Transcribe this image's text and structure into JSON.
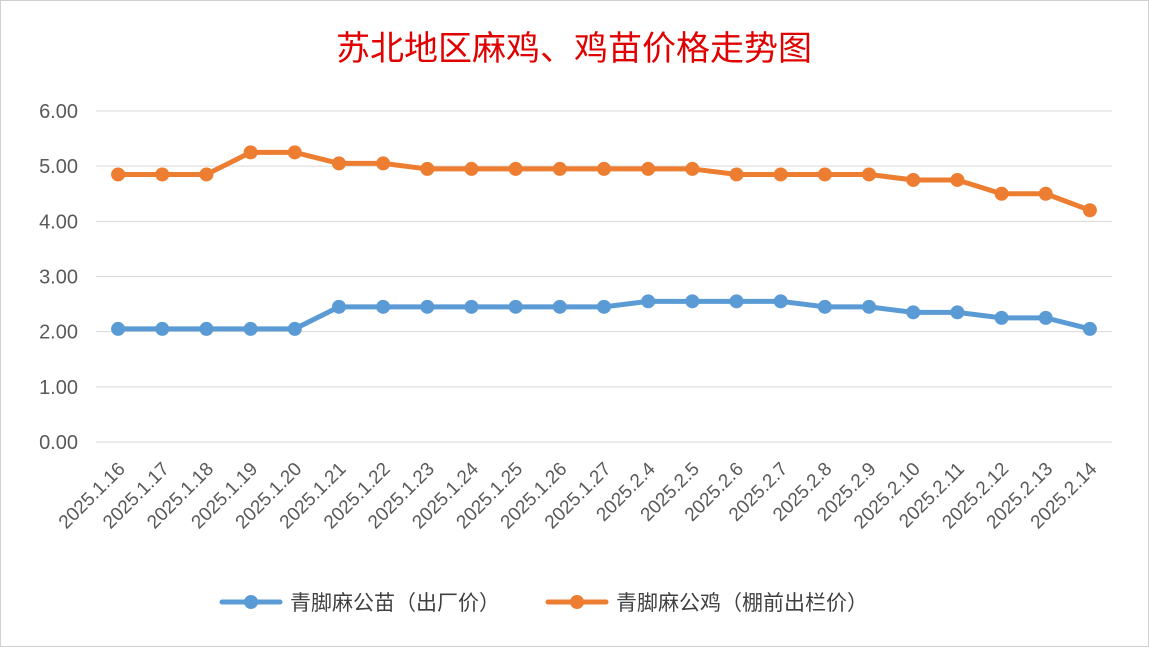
{
  "chart_data": {
    "type": "line",
    "title": "苏北地区麻鸡、鸡苗价格走势图",
    "xlabel": "",
    "ylabel": "",
    "ylim": [
      0,
      6
    ],
    "yticks": [
      "0.00",
      "1.00",
      "2.00",
      "3.00",
      "4.00",
      "5.00",
      "6.00"
    ],
    "grid": true,
    "legend_position": "bottom",
    "categories": [
      "2025.1.16",
      "2025.1.17",
      "2025.1.18",
      "2025.1.19",
      "2025.1.20",
      "2025.1.21",
      "2025.1.22",
      "2025.1.23",
      "2025.1.24",
      "2025.1.25",
      "2025.1.26",
      "2025.1.27",
      "2025.2.4",
      "2025.2.5",
      "2025.2.6",
      "2025.2.7",
      "2025.2.8",
      "2025.2.9",
      "2025.2.10",
      "2025.2.11",
      "2025.2.12",
      "2025.2.13",
      "2025.2.14"
    ],
    "series": [
      {
        "name": "青脚麻公苗（出厂价）",
        "color": "#5b9bd5",
        "values": [
          2.05,
          2.05,
          2.05,
          2.05,
          2.05,
          2.45,
          2.45,
          2.45,
          2.45,
          2.45,
          2.45,
          2.45,
          2.55,
          2.55,
          2.55,
          2.55,
          2.45,
          2.45,
          2.35,
          2.35,
          2.25,
          2.25,
          2.05
        ]
      },
      {
        "name": "青脚麻公鸡（棚前出栏价）",
        "color": "#ed7d31",
        "values": [
          4.85,
          4.85,
          4.85,
          5.25,
          5.25,
          5.05,
          5.05,
          4.95,
          4.95,
          4.95,
          4.95,
          4.95,
          4.95,
          4.95,
          4.85,
          4.85,
          4.85,
          4.85,
          4.75,
          4.75,
          4.5,
          4.5,
          4.2
        ]
      }
    ]
  }
}
